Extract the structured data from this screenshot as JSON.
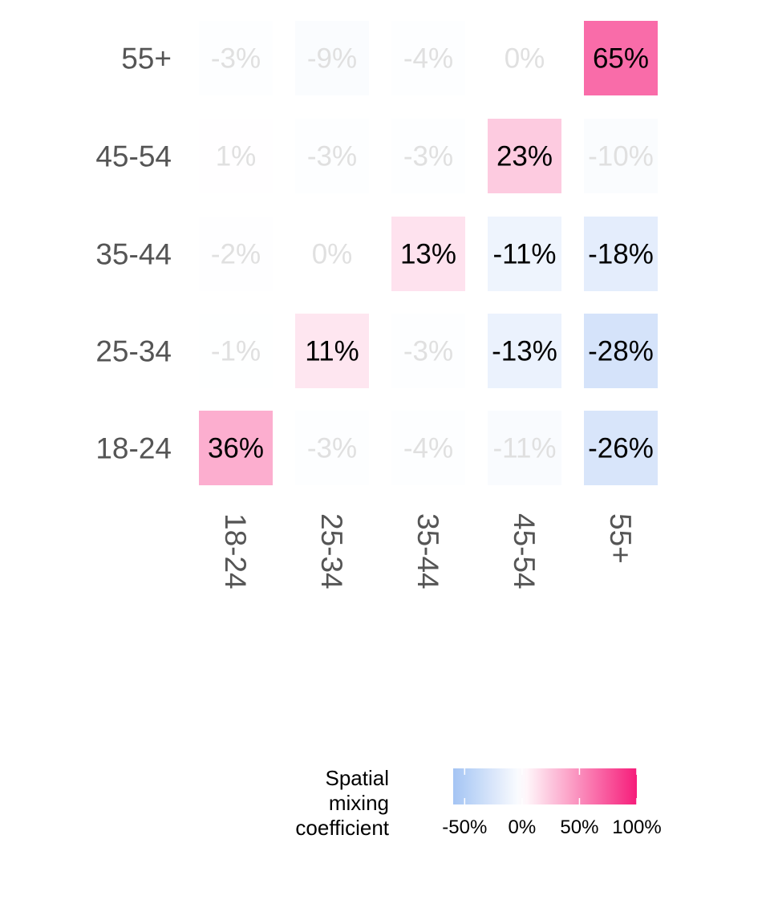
{
  "chart_data": {
    "type": "heatmap",
    "title": "",
    "xlabel": "",
    "ylabel": "",
    "x_categories": [
      "18-24",
      "25-34",
      "35-44",
      "45-54",
      "55+"
    ],
    "y_categories": [
      "18-24",
      "25-34",
      "35-44",
      "45-54",
      "55+"
    ],
    "values": [
      [
        36,
        -3,
        -4,
        -11,
        -26
      ],
      [
        -1,
        11,
        -3,
        -13,
        -28
      ],
      [
        -2,
        0,
        13,
        -11,
        -18
      ],
      [
        1,
        -3,
        -3,
        23,
        -10
      ],
      [
        -3,
        -9,
        -4,
        0,
        65
      ]
    ],
    "cell_labels": [
      [
        "36%",
        "-3%",
        "-4%",
        "-11%",
        "-26%"
      ],
      [
        "-1%",
        "11%",
        "-3%",
        "-13%",
        "-28%"
      ],
      [
        "-2%",
        "0%",
        "13%",
        "-11%",
        "-18%"
      ],
      [
        "1%",
        "-3%",
        "-3%",
        "23%",
        "-10%"
      ],
      [
        "-3%",
        "-9%",
        "-4%",
        "0%",
        "65%"
      ]
    ],
    "highlighted": [
      [
        true,
        false,
        false,
        false,
        true
      ],
      [
        false,
        true,
        false,
        true,
        true
      ],
      [
        false,
        false,
        true,
        true,
        true
      ],
      [
        false,
        false,
        false,
        true,
        false
      ],
      [
        false,
        false,
        false,
        false,
        true
      ]
    ],
    "legend": {
      "title": [
        "Spatial",
        "mixing",
        "coefficient"
      ],
      "ticks": [
        -50,
        0,
        50,
        100
      ],
      "tick_labels": [
        "-50%",
        "0%",
        "50%",
        "100%"
      ],
      "range": [
        -60,
        100
      ],
      "placement": "bottom"
    },
    "colors": {
      "negative": "#a4c4f4",
      "neutral": "#ffffff",
      "positive": "#f61d7a",
      "label_strong": "#000000",
      "label_muted": "#e0e0e0",
      "axis_text": "#555555"
    }
  }
}
